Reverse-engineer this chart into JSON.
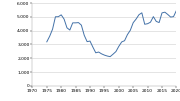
{
  "years": [
    1975,
    1976,
    1977,
    1978,
    1979,
    1980,
    1981,
    1982,
    1983,
    1984,
    1985,
    1986,
    1987,
    1988,
    1989,
    1990,
    1991,
    1992,
    1993,
    1994,
    1995,
    1996,
    1997,
    1998,
    1999,
    2000,
    2001,
    2002,
    2003,
    2004,
    2005,
    2006,
    2007,
    2008,
    2009,
    2010,
    2011,
    2012,
    2013,
    2014,
    2015,
    2016,
    2017,
    2018,
    2019,
    2020
  ],
  "fatalities": [
    3189,
    3595,
    4105,
    5005,
    5010,
    5144,
    4836,
    4204,
    4044,
    4564,
    4564,
    4582,
    4398,
    3661,
    3204,
    3244,
    2806,
    2395,
    2449,
    2320,
    2227,
    2160,
    2116,
    2294,
    2483,
    2862,
    3181,
    3270,
    3714,
    4028,
    4576,
    4837,
    5154,
    5290,
    4462,
    4502,
    4612,
    5015,
    4668,
    4586,
    5286,
    5337,
    5172,
    4985,
    5014,
    5458
  ],
  "line_color": "#4472a8",
  "background_color": "#ffffff",
  "grid_color": "#d0d0d0",
  "xlim": [
    1970,
    2020
  ],
  "ylim": [
    0,
    6000
  ],
  "yticks": [
    0,
    1000,
    2000,
    3000,
    4000,
    5000,
    6000
  ],
  "xticks": [
    1970,
    1975,
    1980,
    1985,
    1990,
    1995,
    2000,
    2005,
    2010,
    2015,
    2020
  ],
  "tick_fontsize": 3.2,
  "line_width": 0.7
}
